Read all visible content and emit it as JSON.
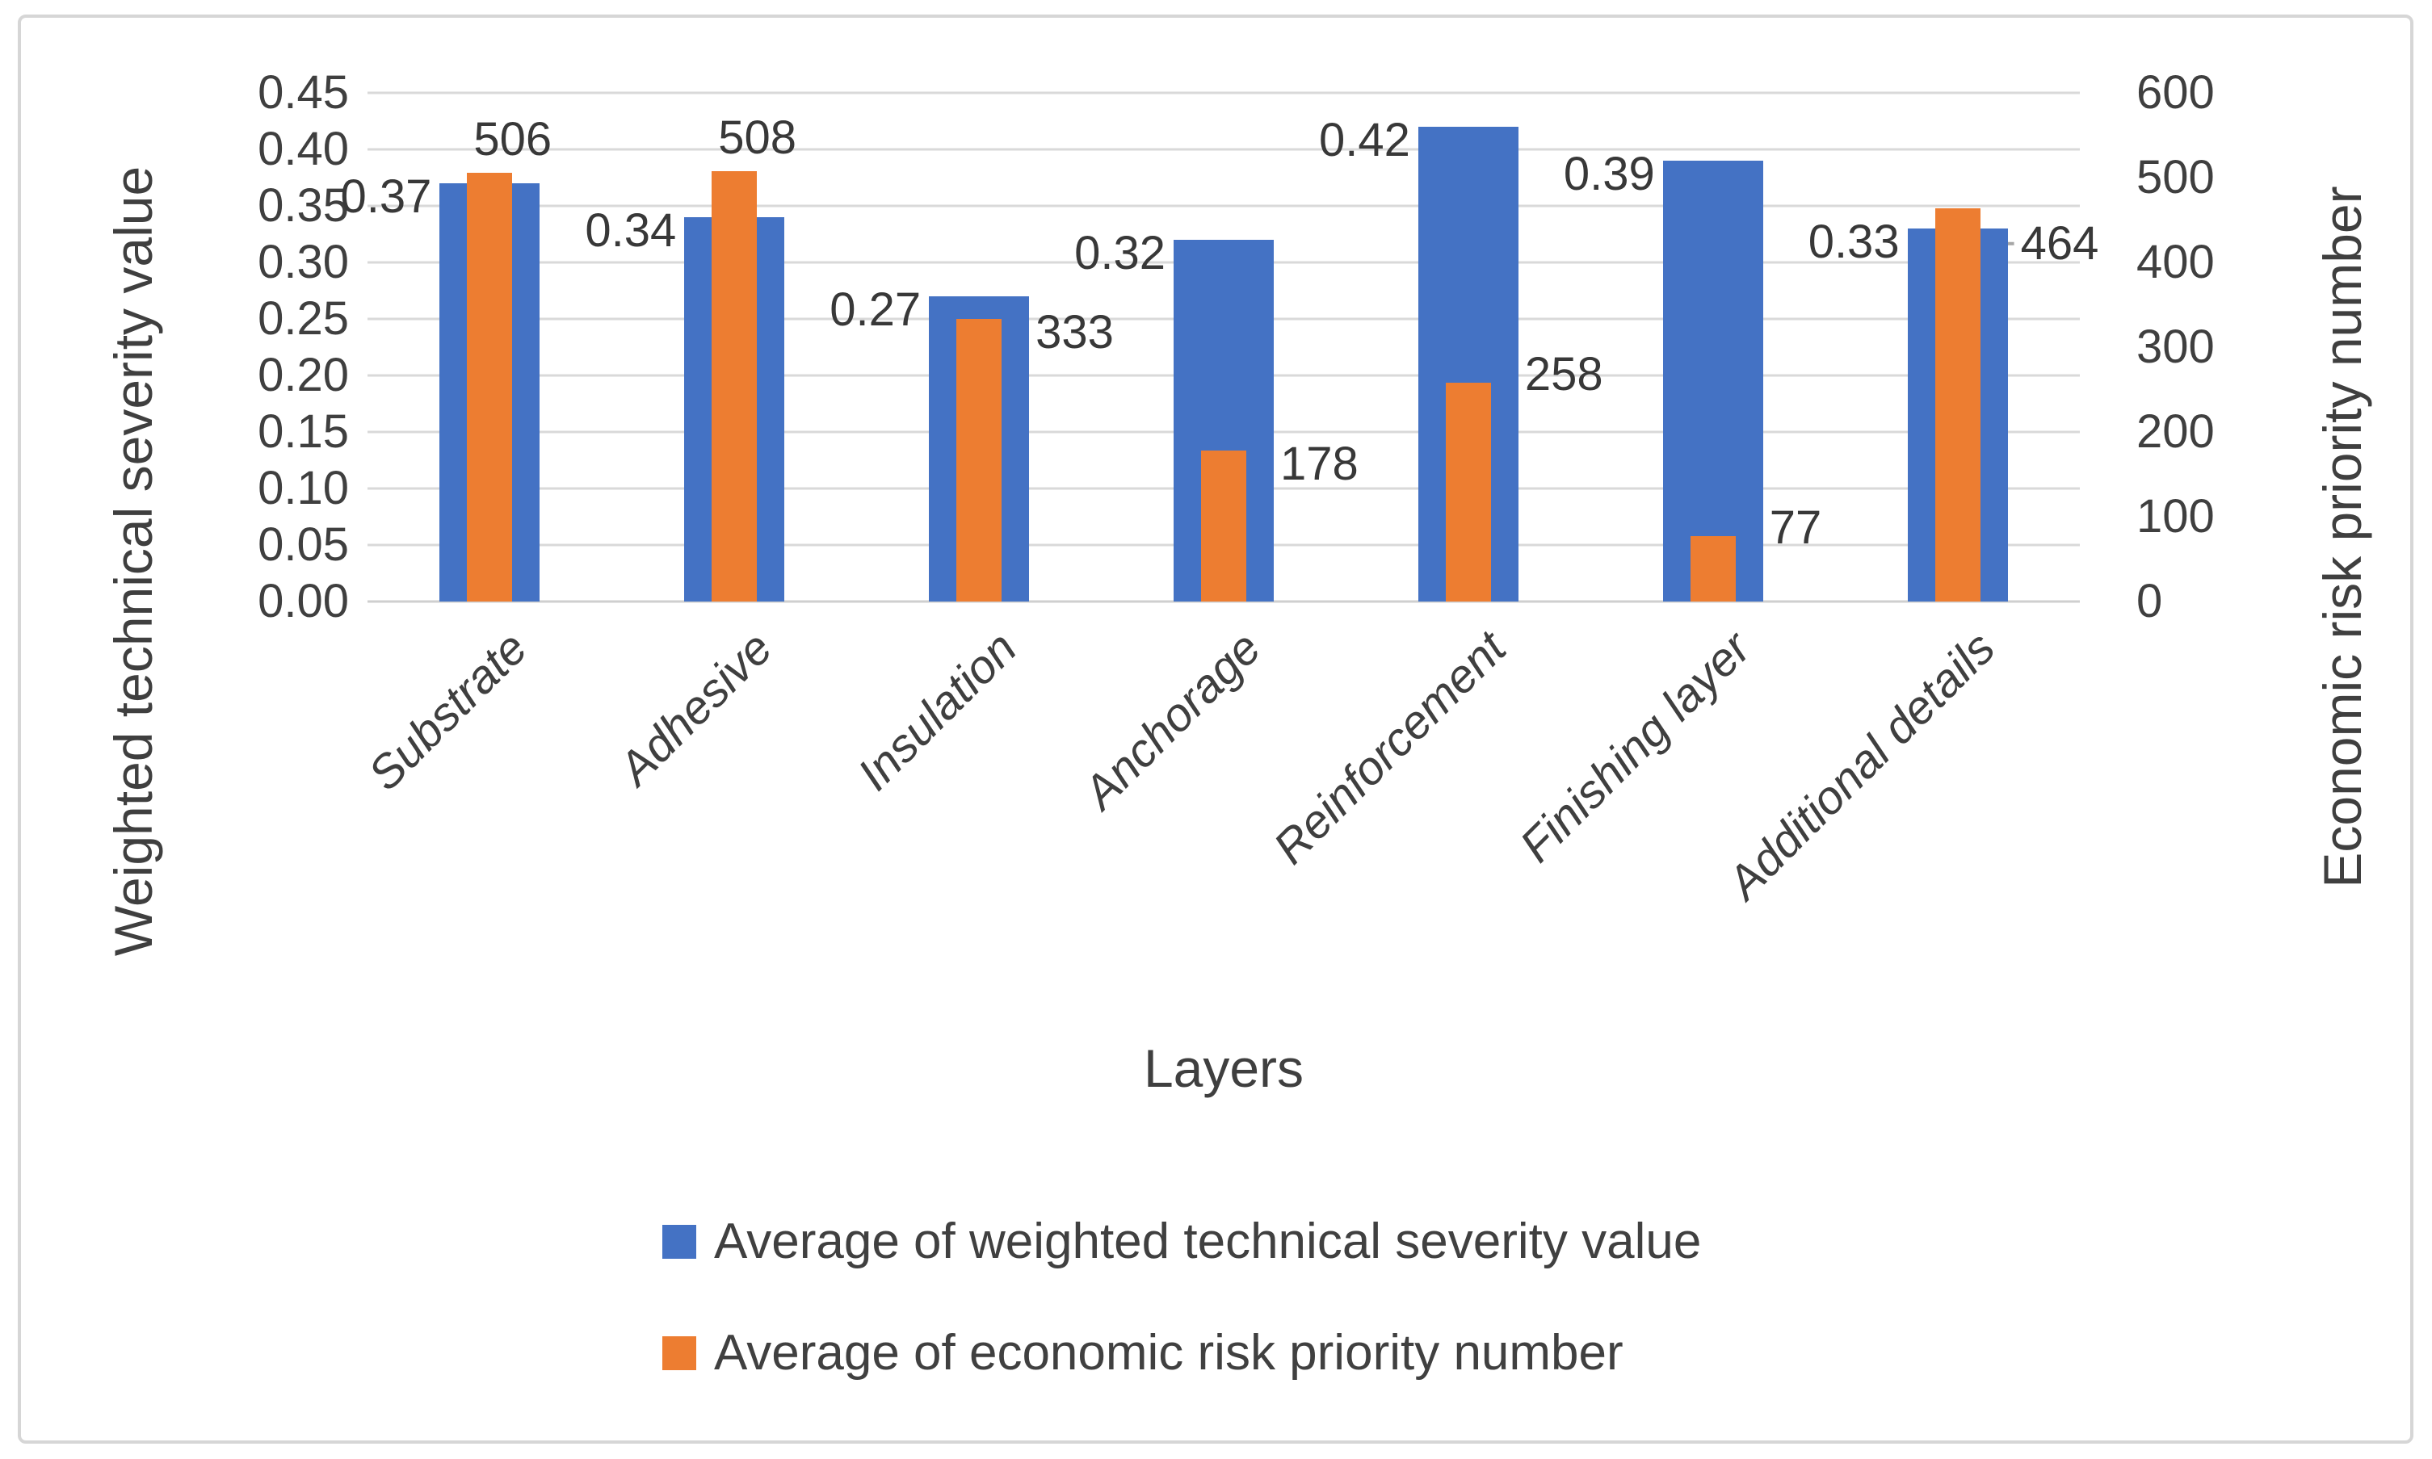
{
  "chart_data": {
    "type": "bar",
    "categories": [
      "Substrate",
      "Adhesive",
      "Insulation",
      "Anchorage",
      "Reinforcement",
      "Finishing layer",
      "Additional details"
    ],
    "series": [
      {
        "name": "Average of weighted technical severity value",
        "axis": "left",
        "color": "#4472C4",
        "values": [
          0.37,
          0.34,
          0.27,
          0.32,
          0.42,
          0.39,
          0.33
        ],
        "data_labels": [
          "0.37",
          "0.34",
          "0.27",
          "0.32",
          "0.42",
          "0.39",
          "0.33"
        ]
      },
      {
        "name": "Average of economic risk priority number",
        "axis": "right",
        "color": "#ED7D31",
        "values": [
          506,
          508,
          333,
          178,
          258,
          77,
          464
        ],
        "data_labels": [
          "506",
          "508",
          "333",
          "178",
          "258",
          "77",
          "464"
        ]
      }
    ],
    "x_axis": {
      "title": "Layers"
    },
    "left_axis": {
      "title": "Weighted technical severity value",
      "min": 0.0,
      "max": 0.45,
      "step": 0.05,
      "tick_labels": [
        "0.45",
        "0.40",
        "0.35",
        "0.30",
        "0.25",
        "0.20",
        "0.15",
        "0.10",
        "0.05",
        "0.00"
      ]
    },
    "right_axis": {
      "title": "Economic risk priority number",
      "min": 0,
      "max": 600,
      "step": 100,
      "tick_labels": [
        "600",
        "500",
        "400",
        "300",
        "200",
        "100",
        "0"
      ]
    },
    "legend": {
      "position": "bottom-left",
      "entries": [
        {
          "label": "Average of weighted technical severity value",
          "color": "#4472C4"
        },
        {
          "label": "Average of economic risk priority number",
          "color": "#ED7D31"
        }
      ]
    },
    "grid": true,
    "gridline_color": "#d9d9d9",
    "baseline_color": "#cfcfcf",
    "leader_line_color": "#a6a6a6",
    "leader_line_indices": [
      2,
      4,
      5,
      6
    ]
  }
}
